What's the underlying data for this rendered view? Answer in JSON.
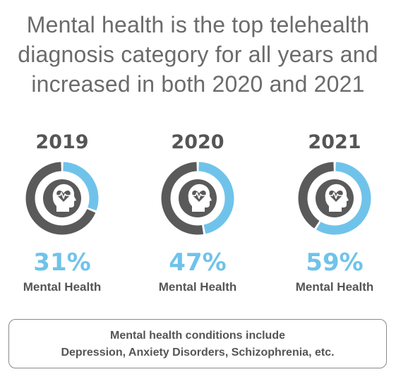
{
  "headline": {
    "line1": "Mental health is the top telehealth",
    "line2": "diagnosis category for all years and",
    "line3": "increased in both 2020 and 2021"
  },
  "colors": {
    "accent": "#6fc3ea",
    "ring": "#5a5a5a",
    "text": "#555555",
    "headline": "#6b6b6b",
    "icon_bg": "#5a5a5a"
  },
  "chart_data": {
    "type": "pie",
    "title": "Mental health is the top telehealth diagnosis category for all years and increased in both 2020 and 2021",
    "categories": [
      "2019",
      "2020",
      "2021"
    ],
    "series": [
      {
        "name": "Mental Health",
        "values": [
          31,
          47,
          59
        ]
      }
    ],
    "value_labels": [
      "31%",
      "47%",
      "59%"
    ],
    "center_icon": "head-heartbeat-icon"
  },
  "panels": [
    {
      "year": "2019",
      "percent_label": "31%",
      "category": "Mental Health"
    },
    {
      "year": "2020",
      "percent_label": "47%",
      "category": "Mental Health"
    },
    {
      "year": "2021",
      "percent_label": "59%",
      "category": "Mental Health"
    }
  ],
  "note": {
    "line1": "Mental health conditions include",
    "line2": "Depression, Anxiety Disorders, Schizophrenia, etc."
  }
}
